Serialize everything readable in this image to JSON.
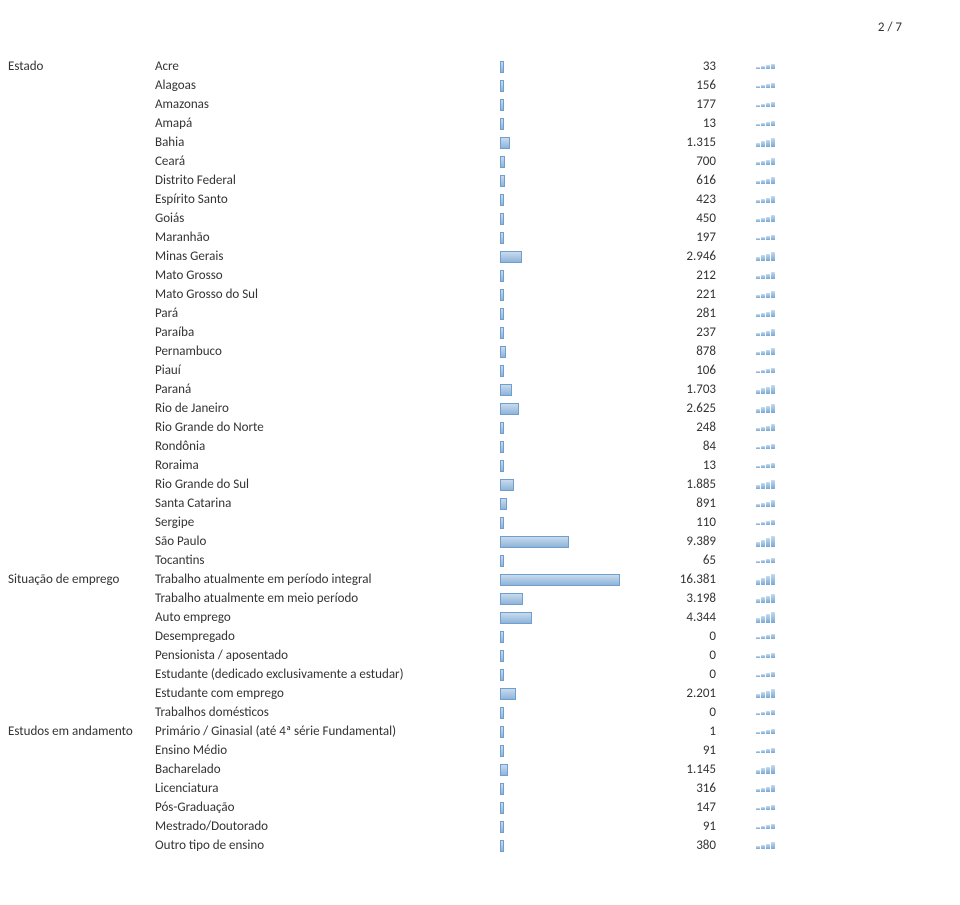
{
  "page_number_label": "2 / 7",
  "max_value": 16381,
  "bar_cell_width": 120,
  "bar_fill": "linear-gradient(to bottom, #c8dbee 0%, #8fb4d9 100%)",
  "bar_border": "#6f9fce",
  "text_color": "#333333",
  "spark_heights": {
    "lvl1": [
      2,
      3,
      4,
      5
    ],
    "lvl2": [
      3,
      4,
      5,
      7
    ],
    "lvl3": [
      4,
      6,
      7,
      9
    ],
    "lvl4": [
      5,
      7,
      9,
      11
    ]
  },
  "groups": [
    {
      "title": "Estado",
      "rows": [
        {
          "label": "Acre",
          "val": 33,
          "disp": "33",
          "spark": "lvl1"
        },
        {
          "label": "Alagoas",
          "val": 156,
          "disp": "156",
          "spark": "lvl1"
        },
        {
          "label": "Amazonas",
          "val": 177,
          "disp": "177",
          "spark": "lvl1"
        },
        {
          "label": "Amapá",
          "val": 13,
          "disp": "13",
          "spark": "lvl1"
        },
        {
          "label": "Bahia",
          "val": 1315,
          "disp": "1.315",
          "spark": "lvl3"
        },
        {
          "label": "Ceará",
          "val": 700,
          "disp": "700",
          "spark": "lvl2"
        },
        {
          "label": "Distrito Federal",
          "val": 616,
          "disp": "616",
          "spark": "lvl2"
        },
        {
          "label": "Espírito Santo",
          "val": 423,
          "disp": "423",
          "spark": "lvl2"
        },
        {
          "label": "Goiás",
          "val": 450,
          "disp": "450",
          "spark": "lvl2"
        },
        {
          "label": "Maranhão",
          "val": 197,
          "disp": "197",
          "spark": "lvl1"
        },
        {
          "label": "Minas Gerais",
          "val": 2946,
          "disp": "2.946",
          "spark": "lvl3"
        },
        {
          "label": "Mato Grosso",
          "val": 212,
          "disp": "212",
          "spark": "lvl2"
        },
        {
          "label": "Mato Grosso do Sul",
          "val": 221,
          "disp": "221",
          "spark": "lvl2"
        },
        {
          "label": "Pará",
          "val": 281,
          "disp": "281",
          "spark": "lvl2"
        },
        {
          "label": "Paraíba",
          "val": 237,
          "disp": "237",
          "spark": "lvl2"
        },
        {
          "label": "Pernambuco",
          "val": 878,
          "disp": "878",
          "spark": "lvl2"
        },
        {
          "label": "Piauí",
          "val": 106,
          "disp": "106",
          "spark": "lvl1"
        },
        {
          "label": "Paraná",
          "val": 1703,
          "disp": "1.703",
          "spark": "lvl3"
        },
        {
          "label": "Rio de Janeiro",
          "val": 2625,
          "disp": "2.625",
          "spark": "lvl3"
        },
        {
          "label": "Rio Grande do Norte",
          "val": 248,
          "disp": "248",
          "spark": "lvl2"
        },
        {
          "label": "Rondônia",
          "val": 84,
          "disp": "84",
          "spark": "lvl1"
        },
        {
          "label": "Roraima",
          "val": 13,
          "disp": "13",
          "spark": "lvl1"
        },
        {
          "label": "Rio Grande do Sul",
          "val": 1885,
          "disp": "1.885",
          "spark": "lvl3"
        },
        {
          "label": "Santa Catarina",
          "val": 891,
          "disp": "891",
          "spark": "lvl2"
        },
        {
          "label": "Sergipe",
          "val": 110,
          "disp": "110",
          "spark": "lvl1"
        },
        {
          "label": "São Paulo",
          "val": 9389,
          "disp": "9.389",
          "spark": "lvl4"
        },
        {
          "label": "Tocantins",
          "val": 65,
          "disp": "65",
          "spark": "lvl1"
        }
      ]
    },
    {
      "title": "Situação de emprego",
      "rows": [
        {
          "label": "Trabalho atualmente em período integral",
          "val": 16381,
          "disp": "16.381",
          "spark": "lvl4"
        },
        {
          "label": "Trabalho atualmente em meio período",
          "val": 3198,
          "disp": "3.198",
          "spark": "lvl3"
        },
        {
          "label": "Auto emprego",
          "val": 4344,
          "disp": "4.344",
          "spark": "lvl4"
        },
        {
          "label": "Desempregado",
          "val": 0,
          "disp": "0",
          "spark": "lvl1"
        },
        {
          "label": "Pensionista / aposentado",
          "val": 0,
          "disp": "0",
          "spark": "lvl1"
        },
        {
          "label": "Estudante (dedicado exclusivamente a estudar)",
          "val": 0,
          "disp": "0",
          "spark": "lvl1"
        },
        {
          "label": "Estudante com emprego",
          "val": 2201,
          "disp": "2.201",
          "spark": "lvl3"
        },
        {
          "label": "Trabalhos domésticos",
          "val": 0,
          "disp": "0",
          "spark": "lvl1"
        }
      ]
    },
    {
      "title": "Estudos em andamento",
      "rows": [
        {
          "label": "Primário / Ginasial (até 4ª série Fundamental)",
          "val": 1,
          "disp": "1",
          "spark": "lvl1"
        },
        {
          "label": "Ensino Médio",
          "val": 91,
          "disp": "91",
          "spark": "lvl1"
        },
        {
          "label": "Bacharelado",
          "val": 1145,
          "disp": "1.145",
          "spark": "lvl3"
        },
        {
          "label": "Licenciatura",
          "val": 316,
          "disp": "316",
          "spark": "lvl2"
        },
        {
          "label": "Pós-Graduação",
          "val": 147,
          "disp": "147",
          "spark": "lvl1"
        },
        {
          "label": "Mestrado/Doutorado",
          "val": 91,
          "disp": "91",
          "spark": "lvl1"
        },
        {
          "label": "Outro tipo de ensino",
          "val": 380,
          "disp": "380",
          "spark": "lvl2"
        }
      ]
    }
  ]
}
